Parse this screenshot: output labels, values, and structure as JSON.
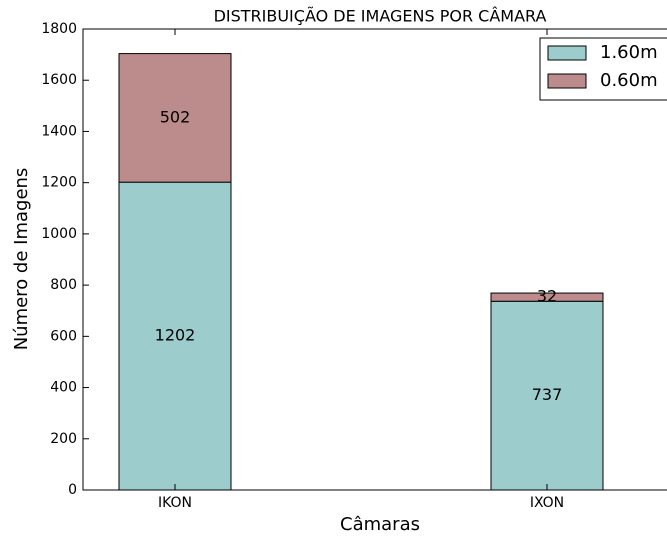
{
  "chart_data": {
    "type": "stacked_bar",
    "title": "DISTRIBUIÇÃO DE IMAGENS POR CÂMARA",
    "x_label": "Câmaras",
    "y_label": "Número de Imagens",
    "categories": [
      "IKON",
      "IXON"
    ],
    "series": [
      {
        "name": "1.60m",
        "color": "#9ccccc",
        "values": [
          1202,
          737
        ]
      },
      {
        "name": "0.60m",
        "color": "#bc8c8c",
        "values": [
          502,
          32
        ]
      }
    ],
    "ylim": [
      0,
      1800
    ],
    "yticks": [
      0,
      200,
      400,
      600,
      800,
      1000,
      1200,
      1400,
      1600,
      1800
    ],
    "legend": "upper right"
  }
}
